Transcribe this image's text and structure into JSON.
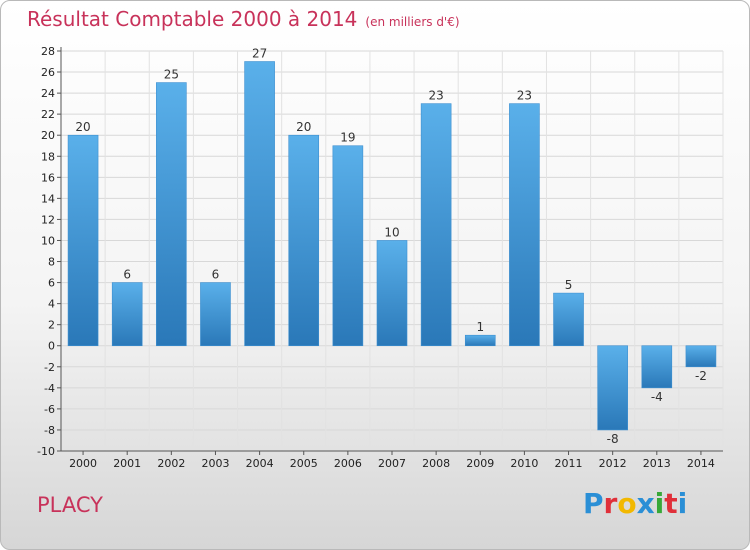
{
  "header": {
    "title": "Résultat Comptable 2000 à 2014",
    "subtitle": "(en milliers d'€)"
  },
  "footer": {
    "city": "PLACY",
    "logo_letters": [
      "P",
      "r",
      "o",
      "x",
      "i",
      "t",
      "i"
    ],
    "logo_colors": [
      "#2a8fd6",
      "#e0303a",
      "#f2b800",
      "#2a8fd6",
      "#38a838",
      "#e0303a",
      "#2a8fd6"
    ]
  },
  "chart_data": {
    "type": "bar",
    "title": "Résultat Comptable 2000 à 2014",
    "subtitle": "(en milliers d'€)",
    "xlabel": "",
    "ylabel": "",
    "categories": [
      "2000",
      "2001",
      "2002",
      "2003",
      "2004",
      "2005",
      "2006",
      "2007",
      "2008",
      "2009",
      "2010",
      "2011",
      "2012",
      "2013",
      "2014"
    ],
    "values": [
      20,
      6,
      25,
      6,
      27,
      20,
      19,
      10,
      23,
      1,
      23,
      5,
      -8,
      -4,
      -2
    ],
    "ylim": [
      -10,
      28
    ],
    "yticks": [
      28,
      26,
      24,
      22,
      20,
      18,
      16,
      14,
      12,
      10,
      8,
      6,
      4,
      2,
      0,
      -2,
      -4,
      -6,
      -8,
      -10
    ],
    "grid": true,
    "legend": "none",
    "bar_color_light": "#5ab0ea",
    "bar_color_dark": "#2a78b8"
  }
}
